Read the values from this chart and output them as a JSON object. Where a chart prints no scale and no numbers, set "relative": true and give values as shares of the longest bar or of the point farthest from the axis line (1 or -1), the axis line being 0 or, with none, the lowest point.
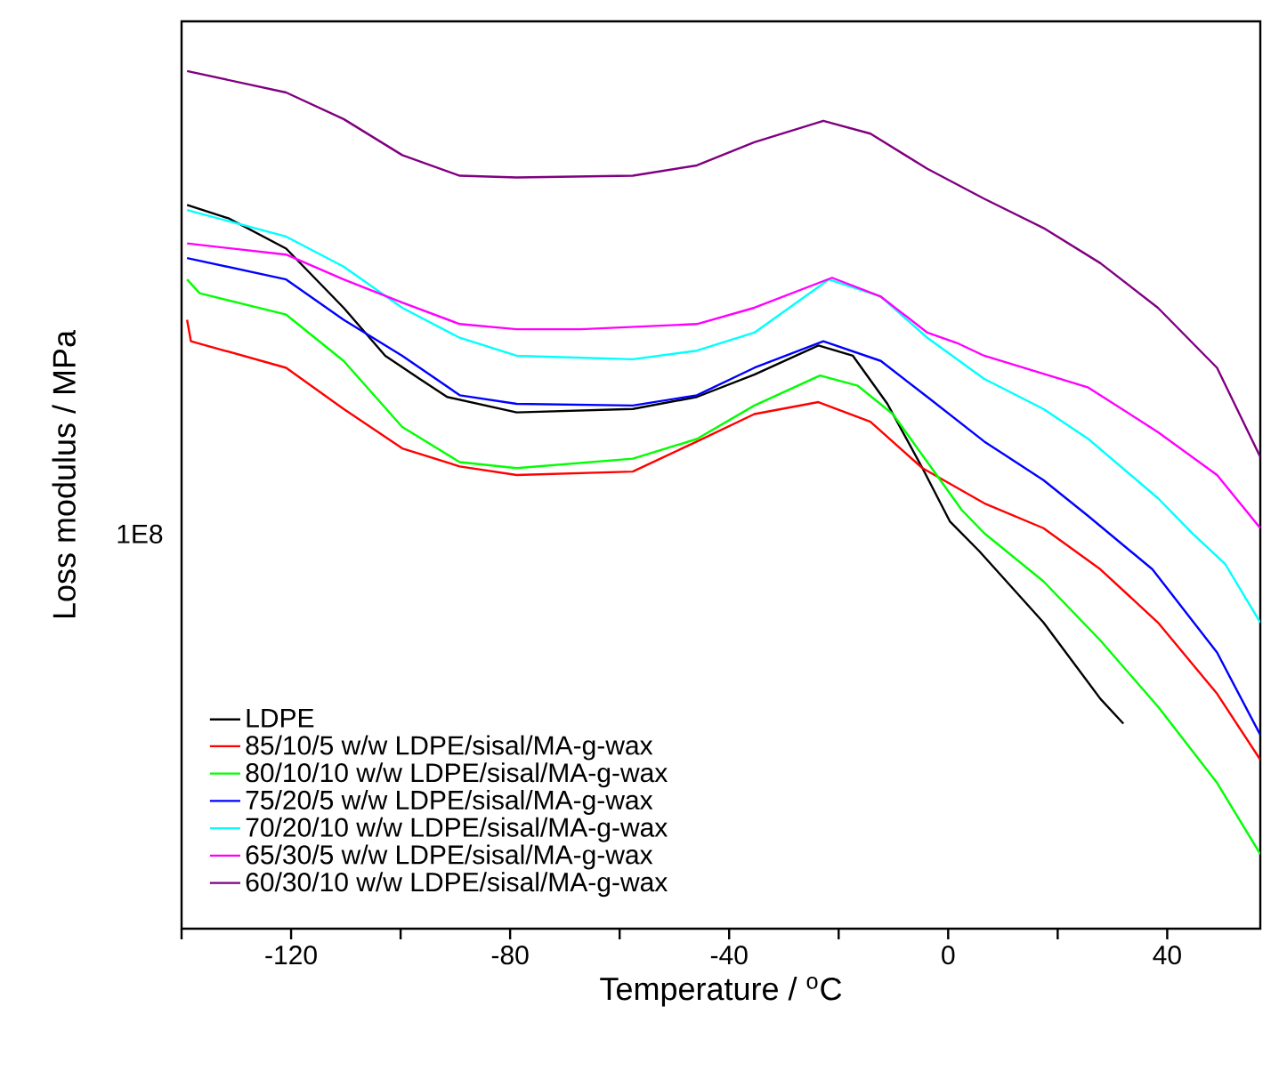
{
  "chart_data": {
    "type": "line",
    "xlabel": "Temperature / $^{o}$C",
    "ylabel": "Loss modulus / MPa",
    "relative": true,
    "xlim": [
      -140,
      57
    ],
    "legend": "bottom left",
    "marker": "none",
    "line_style": "solid",
    "xticks": [
      {
        "value": -140,
        "label": null
      },
      -120,
      {
        "value": -100,
        "label": null
      },
      -80,
      {
        "value": -60,
        "label": null
      },
      -40,
      {
        "value": -20,
        "label": null
      },
      0,
      {
        "value": 20,
        "label": null
      },
      40
    ],
    "annotations": [
      "1E8"
    ],
    "series": [
      {
        "name": "LDPE",
        "color": "#000000",
        "x": [
          -139,
          -131.3,
          -120.9,
          -110.4,
          -102.8,
          -96.5,
          -91.5,
          -78.8,
          -57.6,
          -45.9,
          -35.4,
          -23.7,
          -17.4,
          -11.1,
          -4.7,
          0.3,
          5.7,
          17.4,
          27.8,
          32
        ],
        "values": [
          0.844,
          0.828,
          0.793,
          0.724,
          0.668,
          0.641,
          0.62,
          0.602,
          0.606,
          0.62,
          0.646,
          0.68,
          0.668,
          0.612,
          0.537,
          0.475,
          0.44,
          0.357,
          0.268,
          0.239
        ]
      },
      {
        "name": "85/10/5 w/w LDPE/sisal/MA-g-wax",
        "color": "#ff0000",
        "x": [
          -139,
          -138.3,
          -120.9,
          -110.4,
          -99.7,
          -89.2,
          -78.8,
          -57.6,
          -45.9,
          -35.4,
          -23.7,
          -14.2,
          -4.7,
          6.6,
          17.4,
          27.8,
          38.3,
          49.1,
          57
        ],
        "values": [
          0.71,
          0.685,
          0.654,
          0.606,
          0.56,
          0.539,
          0.529,
          0.533,
          0.568,
          0.6,
          0.614,
          0.591,
          0.537,
          0.496,
          0.467,
          0.419,
          0.357,
          0.274,
          0.197
        ]
      },
      {
        "name": "80/10/10 w/w LDPE/sisal/MA-g-wax",
        "color": "#00ff00",
        "x": [
          -139,
          -136.7,
          -120.9,
          -110.4,
          -99.7,
          -89.2,
          -78.8,
          -57.6,
          -45.9,
          -35.4,
          -23.4,
          -16.5,
          -10.1,
          -3.8,
          2.5,
          6.6,
          17.4,
          27.8,
          38.3,
          49.1,
          57
        ],
        "values": [
          0.757,
          0.741,
          0.716,
          0.662,
          0.585,
          0.544,
          0.537,
          0.548,
          0.571,
          0.61,
          0.645,
          0.633,
          0.6,
          0.544,
          0.488,
          0.461,
          0.405,
          0.336,
          0.259,
          0.17,
          0.087
        ]
      },
      {
        "name": "75/20/5 w/w LDPE/sisal/MA-g-wax",
        "color": "#0000ff",
        "x": [
          -139,
          -120.9,
          -110.4,
          -99.7,
          -89.2,
          -78.8,
          -57.6,
          -45.9,
          -35.4,
          -22.8,
          -12.3,
          -3.8,
          6.6,
          17.4,
          25.6,
          37.3,
          49.1,
          57
        ],
        "values": [
          0.782,
          0.757,
          0.71,
          0.668,
          0.622,
          0.612,
          0.61,
          0.622,
          0.654,
          0.685,
          0.662,
          0.62,
          0.568,
          0.523,
          0.481,
          0.419,
          0.322,
          0.226
        ]
      },
      {
        "name": "70/20/10 w/w LDPE/sisal/MA-g-wax",
        "color": "#00ffff",
        "x": [
          -139,
          -120.9,
          -110.4,
          -99.7,
          -89.2,
          -78.8,
          -57.6,
          -45.9,
          -35.4,
          -21.8,
          -12.3,
          -3.8,
          6.6,
          17.4,
          25.6,
          38.3,
          44.6,
          50.6,
          57
        ],
        "values": [
          0.838,
          0.807,
          0.772,
          0.724,
          0.689,
          0.668,
          0.664,
          0.674,
          0.695,
          0.757,
          0.737,
          0.689,
          0.641,
          0.606,
          0.571,
          0.502,
          0.461,
          0.425,
          0.357
        ]
      },
      {
        "name": "65/30/5 w/w LDPE/sisal/MA-g-wax",
        "color": "#ff00ff",
        "x": [
          -139,
          -120.9,
          -110.4,
          -99.7,
          -89.2,
          -78.8,
          -67.1,
          -45.9,
          -35.4,
          -21.2,
          -12.3,
          -3.8,
          1.6,
          6.6,
          25.6,
          38.3,
          49.1,
          57
        ],
        "values": [
          0.799,
          0.786,
          0.757,
          0.73,
          0.705,
          0.699,
          0.699,
          0.705,
          0.724,
          0.759,
          0.737,
          0.695,
          0.683,
          0.668,
          0.631,
          0.579,
          0.529,
          0.467
        ]
      },
      {
        "name": "60/30/10 w/w LDPE/sisal/MA-g-wax",
        "color": "#800080",
        "x": [
          -139,
          -120.9,
          -110.4,
          -99.7,
          -89.2,
          -78.8,
          -57.6,
          -45.9,
          -35.4,
          -22.8,
          -14.2,
          -3.8,
          6.6,
          17.4,
          27.8,
          38.3,
          49.1,
          57
        ],
        "values": [
          1.0,
          0.975,
          0.944,
          0.902,
          0.878,
          0.876,
          0.878,
          0.89,
          0.917,
          0.942,
          0.927,
          0.886,
          0.851,
          0.817,
          0.776,
          0.724,
          0.654,
          0.55
        ]
      }
    ]
  }
}
